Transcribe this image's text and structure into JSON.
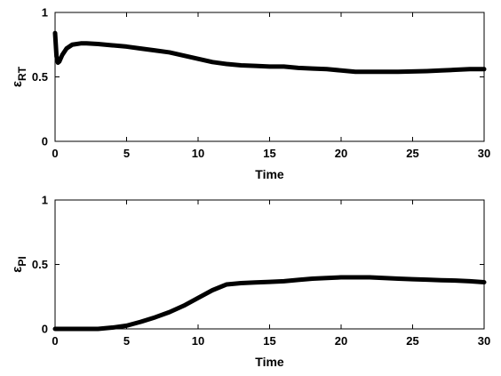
{
  "chart_data": [
    {
      "type": "line",
      "xlabel": "Time",
      "ylabel": {
        "main": "ε",
        "sub": "RT"
      },
      "xlim": [
        0,
        30
      ],
      "ylim": [
        0,
        1
      ],
      "xticks": [
        0,
        5,
        10,
        15,
        20,
        25,
        30
      ],
      "yticks": [
        0,
        0.5,
        1
      ],
      "grid": false,
      "line_color": "#000000",
      "series": [
        {
          "x": [
            0,
            0.1,
            0.2,
            0.3,
            0.5,
            0.8,
            1.2,
            1.8,
            2.2,
            3,
            4,
            5,
            6,
            7,
            8,
            9,
            10,
            11,
            12,
            13,
            14,
            15,
            16,
            17,
            18,
            19,
            20,
            21,
            22,
            23,
            24,
            25,
            26,
            27,
            28,
            29,
            30
          ],
          "y": [
            0.84,
            0.66,
            0.61,
            0.62,
            0.67,
            0.72,
            0.75,
            0.76,
            0.76,
            0.755,
            0.745,
            0.735,
            0.72,
            0.705,
            0.69,
            0.665,
            0.64,
            0.615,
            0.6,
            0.59,
            0.585,
            0.58,
            0.58,
            0.57,
            0.565,
            0.56,
            0.55,
            0.54,
            0.54,
            0.54,
            0.54,
            0.542,
            0.545,
            0.55,
            0.555,
            0.56,
            0.56
          ]
        }
      ]
    },
    {
      "type": "line",
      "xlabel": "Time",
      "ylabel": {
        "main": "ε",
        "sub": "PI"
      },
      "xlim": [
        0,
        30
      ],
      "ylim": [
        0,
        1
      ],
      "xticks": [
        0,
        5,
        10,
        15,
        20,
        25,
        30
      ],
      "yticks": [
        0,
        0.5,
        1
      ],
      "grid": false,
      "line_color": "#000000",
      "series": [
        {
          "x": [
            0,
            1,
            2,
            3,
            4,
            5,
            6,
            7,
            8,
            9,
            10,
            11,
            12,
            13,
            14,
            15,
            16,
            17,
            18,
            19,
            20,
            21,
            22,
            23,
            24,
            25,
            26,
            27,
            28,
            29,
            30
          ],
          "y": [
            0,
            0,
            0,
            0,
            0.01,
            0.025,
            0.055,
            0.09,
            0.13,
            0.18,
            0.24,
            0.3,
            0.345,
            0.355,
            0.36,
            0.365,
            0.37,
            0.38,
            0.39,
            0.395,
            0.4,
            0.4,
            0.4,
            0.395,
            0.39,
            0.385,
            0.382,
            0.378,
            0.375,
            0.37,
            0.362
          ]
        }
      ]
    }
  ]
}
